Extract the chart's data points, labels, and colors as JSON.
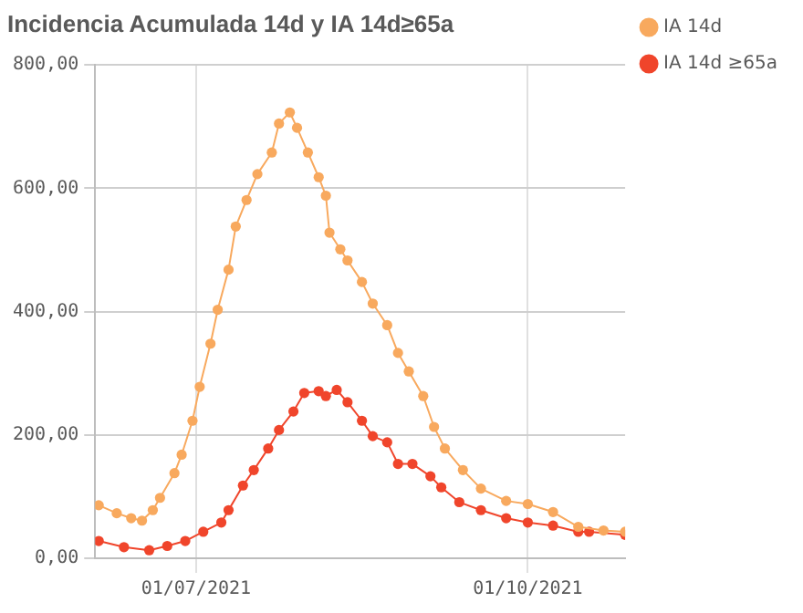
{
  "chart_data": {
    "type": "line",
    "title": "Incidencia Acumulada 14d y IA 14d≥65a",
    "xlim": [
      "2021-06-03",
      "2021-10-28"
    ],
    "xticks": [
      {
        "value": "2021-07-01",
        "label": "01/07/2021"
      },
      {
        "value": "2021-10-01",
        "label": "01/10/2021"
      }
    ],
    "ylim": [
      0,
      800
    ],
    "yticks": [
      {
        "value": 0,
        "label": "0,00"
      },
      {
        "value": 200,
        "label": "200,00"
      },
      {
        "value": 400,
        "label": "400,00"
      },
      {
        "value": 600,
        "label": "600,00"
      },
      {
        "value": 800,
        "label": "800,00"
      }
    ],
    "grid": true,
    "legend": "top right",
    "marker": "circle",
    "line_style": "solid",
    "series": [
      {
        "name": "IA 14d",
        "color": "#f8a95e",
        "x": [
          "2021-06-04",
          "2021-06-09",
          "2021-06-13",
          "2021-06-16",
          "2021-06-19",
          "2021-06-21",
          "2021-06-25",
          "2021-06-27",
          "2021-06-30",
          "2021-07-02",
          "2021-07-05",
          "2021-07-07",
          "2021-07-10",
          "2021-07-12",
          "2021-07-15",
          "2021-07-18",
          "2021-07-22",
          "2021-07-24",
          "2021-07-27",
          "2021-07-29",
          "2021-08-01",
          "2021-08-04",
          "2021-08-06",
          "2021-08-07",
          "2021-08-10",
          "2021-08-12",
          "2021-08-16",
          "2021-08-19",
          "2021-08-23",
          "2021-08-26",
          "2021-08-29",
          "2021-09-02",
          "2021-09-05",
          "2021-09-08",
          "2021-09-13",
          "2021-09-18",
          "2021-09-25",
          "2021-10-01",
          "2021-10-08",
          "2021-10-15",
          "2021-10-22",
          "2021-10-28"
        ],
        "values": [
          86,
          73,
          65,
          61,
          78,
          98,
          138,
          168,
          223,
          278,
          348,
          403,
          468,
          538,
          581,
          623,
          658,
          705,
          723,
          698,
          658,
          618,
          588,
          528,
          501,
          483,
          448,
          413,
          378,
          333,
          303,
          263,
          213,
          178,
          143,
          113,
          93,
          88,
          75,
          51,
          45,
          43
        ]
      },
      {
        "name": "IA 14d ≥65a",
        "color": "#f0452b",
        "x": [
          "2021-06-04",
          "2021-06-11",
          "2021-06-18",
          "2021-06-23",
          "2021-06-28",
          "2021-07-03",
          "2021-07-08",
          "2021-07-10",
          "2021-07-14",
          "2021-07-17",
          "2021-07-21",
          "2021-07-24",
          "2021-07-28",
          "2021-07-31",
          "2021-08-04",
          "2021-08-06",
          "2021-08-09",
          "2021-08-12",
          "2021-08-16",
          "2021-08-19",
          "2021-08-23",
          "2021-08-26",
          "2021-08-30",
          "2021-09-04",
          "2021-09-07",
          "2021-09-12",
          "2021-09-18",
          "2021-09-25",
          "2021-10-01",
          "2021-10-08",
          "2021-10-15",
          "2021-10-18",
          "2021-10-28"
        ],
        "values": [
          28,
          18,
          13,
          20,
          28,
          43,
          58,
          78,
          118,
          143,
          178,
          208,
          238,
          268,
          271,
          263,
          273,
          253,
          223,
          198,
          188,
          153,
          153,
          133,
          115,
          91,
          78,
          65,
          58,
          53,
          43,
          43,
          38
        ]
      }
    ]
  }
}
